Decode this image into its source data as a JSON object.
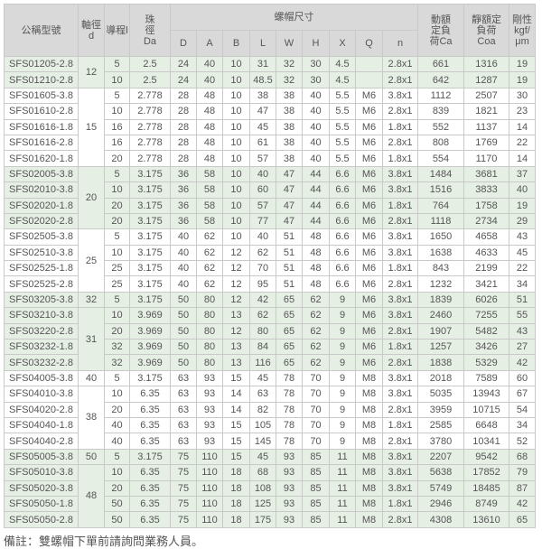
{
  "header": {
    "model": "公稱型號",
    "shaft_dia": "軸徑d",
    "lead": "導程l",
    "ball_dia": "珠徑Da",
    "nut_dims": "螺帽尺寸",
    "nut_cols": [
      "D",
      "A",
      "B",
      "L",
      "W",
      "H",
      "X",
      "Q",
      "n"
    ],
    "dynamic_load": "動額定負荷Ca",
    "static_load": "靜額定負荷Coa",
    "rigidity": "剛性kgf/μm"
  },
  "colors": {
    "header_bg": "#d9d9d9",
    "green_row": "#e5efe4",
    "border": "#c9c9c9",
    "text": "#555555"
  },
  "groups": [
    {
      "d": "12",
      "green": true,
      "rows": [
        [
          "SFS01205-2.8",
          "5",
          "2.5",
          "24",
          "40",
          "10",
          "31",
          "32",
          "30",
          "4.5",
          "",
          "2.8x1",
          "661",
          "1316",
          "19"
        ],
        [
          "SFS01210-2.8",
          "10",
          "2.5",
          "24",
          "40",
          "10",
          "48.5",
          "32",
          "30",
          "4.5",
          "",
          "2.8x1",
          "642",
          "1287",
          "19"
        ]
      ]
    },
    {
      "d": "15",
      "green": false,
      "rows": [
        [
          "SFS01605-3.8",
          "5",
          "2.778",
          "28",
          "48",
          "10",
          "38",
          "38",
          "40",
          "5.5",
          "M6",
          "3.8x1",
          "1112",
          "2507",
          "30"
        ],
        [
          "SFS01610-2.8",
          "10",
          "2.778",
          "28",
          "48",
          "10",
          "47",
          "38",
          "40",
          "5.5",
          "M6",
          "2.8x1",
          "839",
          "1821",
          "23"
        ],
        [
          "SFS01616-1.8",
          "16",
          "2.778",
          "28",
          "48",
          "10",
          "45",
          "38",
          "40",
          "5.5",
          "M6",
          "1.8x1",
          "552",
          "1137",
          "14"
        ],
        [
          "SFS01616-2.8",
          "16",
          "2.778",
          "28",
          "48",
          "10",
          "61",
          "38",
          "40",
          "5.5",
          "M6",
          "2.8x1",
          "808",
          "1769",
          "22"
        ],
        [
          "SFS01620-1.8",
          "20",
          "2.778",
          "28",
          "48",
          "10",
          "57",
          "38",
          "40",
          "5.5",
          "M6",
          "1.8x1",
          "554",
          "1170",
          "14"
        ]
      ]
    },
    {
      "d": "20",
      "green": true,
      "rows": [
        [
          "SFS02005-3.8",
          "5",
          "3.175",
          "36",
          "58",
          "10",
          "40",
          "47",
          "44",
          "6.6",
          "M6",
          "3.8x1",
          "1484",
          "3681",
          "37"
        ],
        [
          "SFS02010-3.8",
          "10",
          "3.175",
          "36",
          "58",
          "10",
          "60",
          "47",
          "44",
          "6.6",
          "M6",
          "3.8x1",
          "1516",
          "3833",
          "40"
        ],
        [
          "SFS02020-1.8",
          "20",
          "3.175",
          "36",
          "58",
          "10",
          "57",
          "47",
          "44",
          "6.6",
          "M6",
          "1.8x1",
          "764",
          "1758",
          "19"
        ],
        [
          "SFS02020-2.8",
          "20",
          "3.175",
          "36",
          "58",
          "10",
          "77",
          "47",
          "44",
          "6.6",
          "M6",
          "2.8x1",
          "1118",
          "2734",
          "29"
        ]
      ]
    },
    {
      "d": "25",
      "green": false,
      "rows": [
        [
          "SFS02505-3.8",
          "5",
          "3.175",
          "40",
          "62",
          "10",
          "40",
          "51",
          "48",
          "6.6",
          "M6",
          "3.8x1",
          "1650",
          "4658",
          "43"
        ],
        [
          "SFS02510-3.8",
          "10",
          "3.175",
          "40",
          "62",
          "12",
          "62",
          "51",
          "48",
          "6.6",
          "M6",
          "3.8x1",
          "1638",
          "4633",
          "45"
        ],
        [
          "SFS02525-1.8",
          "25",
          "3.175",
          "40",
          "62",
          "12",
          "70",
          "51",
          "48",
          "6.6",
          "M6",
          "1.8x1",
          "843",
          "2199",
          "22"
        ],
        [
          "SFS02525-2.8",
          "25",
          "3.175",
          "40",
          "62",
          "12",
          "95",
          "51",
          "48",
          "6.6",
          "M6",
          "2.8x1",
          "1232",
          "3421",
          "34"
        ]
      ]
    },
    {
      "d": "32",
      "green": true,
      "rows": [
        [
          "SFS03205-3.8",
          "5",
          "3.175",
          "50",
          "80",
          "12",
          "42",
          "65",
          "62",
          "9",
          "M6",
          "3.8x1",
          "1839",
          "6026",
          "51"
        ]
      ]
    },
    {
      "d": "31",
      "green": true,
      "rows": [
        [
          "SFS03210-3.8",
          "10",
          "3.969",
          "50",
          "80",
          "13",
          "62",
          "65",
          "62",
          "9",
          "M6",
          "3.8x1",
          "2460",
          "7255",
          "55"
        ],
        [
          "SFS03220-2.8",
          "20",
          "3.969",
          "50",
          "80",
          "12",
          "80",
          "65",
          "62",
          "9",
          "M6",
          "2.8x1",
          "1907",
          "5482",
          "43"
        ],
        [
          "SFS03232-1.8",
          "32",
          "3.969",
          "50",
          "80",
          "13",
          "84",
          "65",
          "62",
          "9",
          "M6",
          "1.8x1",
          "1257",
          "3426",
          "27"
        ],
        [
          "SFS03232-2.8",
          "32",
          "3.969",
          "50",
          "80",
          "13",
          "116",
          "65",
          "62",
          "9",
          "M6",
          "2.8x1",
          "1838",
          "5329",
          "42"
        ]
      ]
    },
    {
      "d": "40",
      "green": false,
      "rows": [
        [
          "SFS04005-3.8",
          "5",
          "3.175",
          "63",
          "93",
          "15",
          "45",
          "78",
          "70",
          "9",
          "M8",
          "3.8x1",
          "2018",
          "7589",
          "60"
        ]
      ]
    },
    {
      "d": "38",
      "green": false,
      "rows": [
        [
          "SFS04010-3.8",
          "10",
          "6.35",
          "63",
          "93",
          "14",
          "63",
          "78",
          "70",
          "9",
          "M8",
          "3.8x1",
          "5035",
          "13943",
          "67"
        ],
        [
          "SFS04020-2.8",
          "20",
          "6.35",
          "63",
          "93",
          "14",
          "82",
          "78",
          "70",
          "9",
          "M8",
          "2.8x1",
          "3959",
          "10715",
          "54"
        ],
        [
          "SFS04040-1.8",
          "40",
          "6.35",
          "63",
          "93",
          "15",
          "105",
          "78",
          "70",
          "9",
          "M8",
          "1.8x1",
          "2585",
          "6648",
          "34"
        ],
        [
          "SFS04040-2.8",
          "40",
          "6.35",
          "63",
          "93",
          "15",
          "145",
          "78",
          "70",
          "9",
          "M8",
          "2.8x1",
          "3780",
          "10341",
          "52"
        ]
      ]
    },
    {
      "d": "50",
      "green": true,
      "rows": [
        [
          "SFS05005-3.8",
          "5",
          "3.175",
          "75",
          "110",
          "15",
          "45",
          "93",
          "85",
          "11",
          "M8",
          "3.8x1",
          "2207",
          "9542",
          "68"
        ]
      ]
    },
    {
      "d": "48",
      "green": true,
      "rows": [
        [
          "SFS05010-3.8",
          "10",
          "6.35",
          "75",
          "110",
          "18",
          "68",
          "93",
          "85",
          "11",
          "M8",
          "3.8x1",
          "5638",
          "17852",
          "79"
        ],
        [
          "SFS05020-3.8",
          "20",
          "6.35",
          "75",
          "110",
          "18",
          "108",
          "93",
          "85",
          "11",
          "M8",
          "3.8x1",
          "5749",
          "18485",
          "87"
        ],
        [
          "SFS05050-1.8",
          "50",
          "6.35",
          "75",
          "110",
          "18",
          "125",
          "93",
          "85",
          "11",
          "M8",
          "1.8x1",
          "2946",
          "8749",
          "42"
        ],
        [
          "SFS05050-2.8",
          "50",
          "6.35",
          "75",
          "110",
          "18",
          "175",
          "93",
          "85",
          "11",
          "M8",
          "2.8x1",
          "4308",
          "13610",
          "65"
        ]
      ]
    }
  ],
  "footer": "備註：雙螺帽下單前請詢問業務人員。"
}
